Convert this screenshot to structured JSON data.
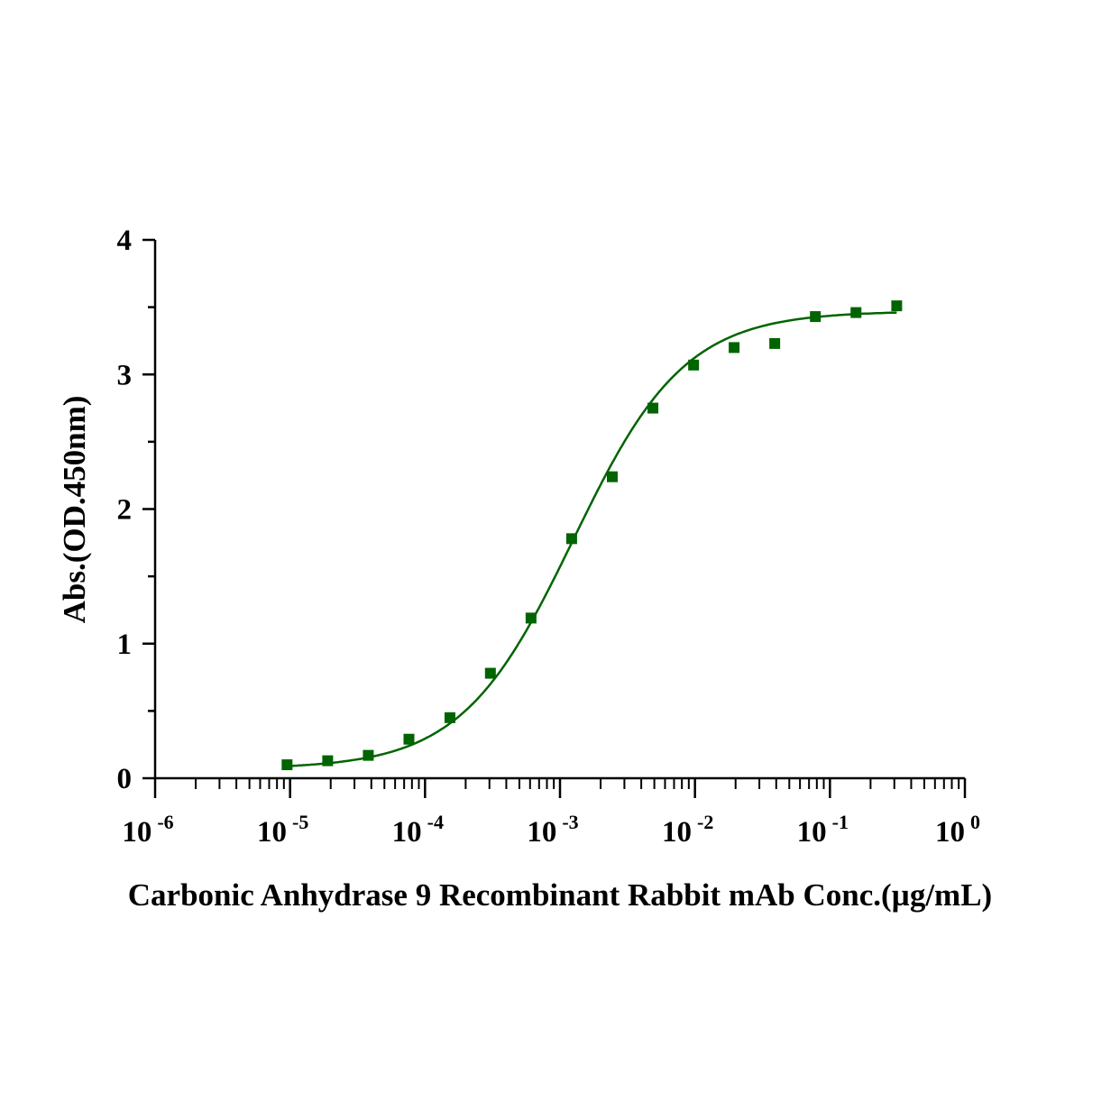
{
  "chart_data": {
    "type": "scatter",
    "title": "",
    "xlabel": "Carbonic Anhydrase 9 Recombinant Rabbit mAb Conc.(µg/mL)",
    "ylabel": "Abs.(OD.450nm)",
    "xscale": "log",
    "xlim": [
      1e-06,
      1
    ],
    "ylim": [
      0,
      4
    ],
    "x_ticks": [
      {
        "base": "10",
        "exp": "-6"
      },
      {
        "base": "10",
        "exp": "-5"
      },
      {
        "base": "10",
        "exp": "-4"
      },
      {
        "base": "10",
        "exp": "-3"
      },
      {
        "base": "10",
        "exp": "-2"
      },
      {
        "base": "10",
        "exp": "-1"
      },
      {
        "base": "10",
        "exp": "0"
      }
    ],
    "y_ticks": [
      "0",
      "1",
      "2",
      "3",
      "4"
    ],
    "grid": false,
    "legend": "none",
    "color": "#006400",
    "fit": "sigmoidal curve",
    "x": [
      9.5e-06,
      1.9e-05,
      3.8e-05,
      7.6e-05,
      0.000153,
      0.000305,
      0.00061,
      0.00122,
      0.00244,
      0.00488,
      0.00977,
      0.0195,
      0.039,
      0.078,
      0.156,
      0.3125
    ],
    "y": [
      0.1,
      0.13,
      0.17,
      0.29,
      0.45,
      0.78,
      1.19,
      1.78,
      2.24,
      2.75,
      3.07,
      3.2,
      3.23,
      3.43,
      3.46,
      3.51
    ]
  }
}
